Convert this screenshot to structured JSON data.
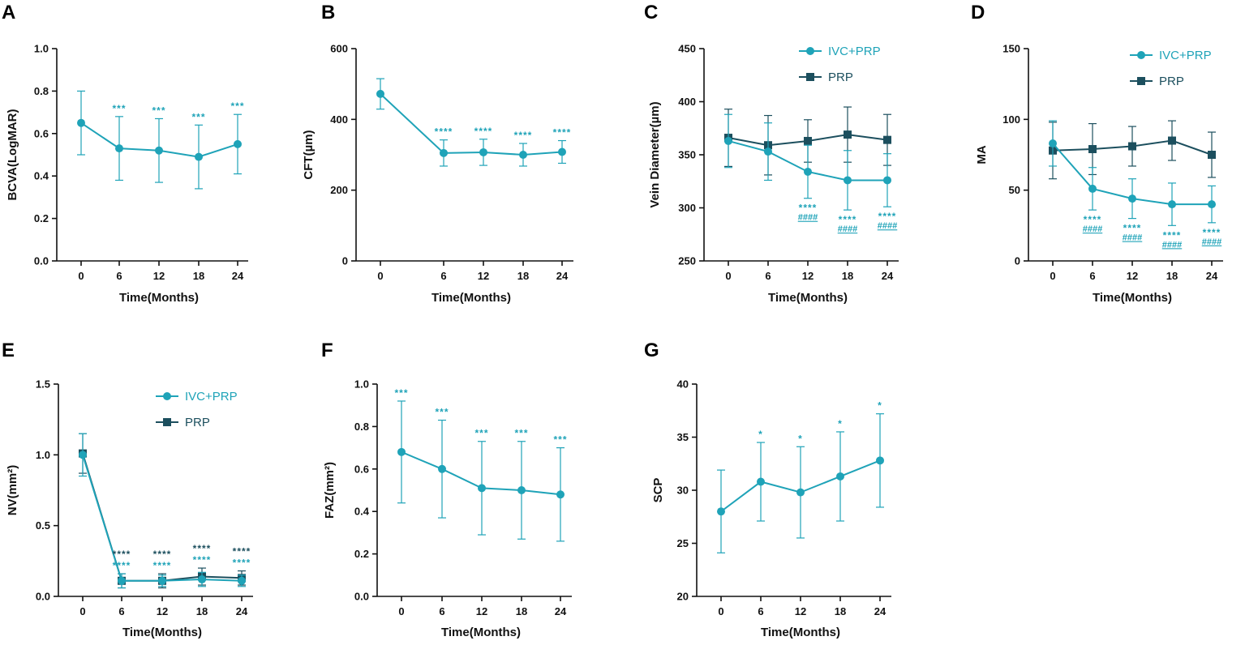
{
  "colors": {
    "ivc": "#1fa3b8",
    "prp": "#1c4f5e",
    "axis": "#111111"
  },
  "chart_data": [
    {
      "panel": "A",
      "type": "line",
      "ylabel": "BCVA(LogMAR)",
      "xlabel": "Time(Months)",
      "ylim": [
        0.0,
        1.0
      ],
      "yticks": [
        0.0,
        0.2,
        0.4,
        0.6,
        0.8,
        1.0
      ],
      "ytick_labels": [
        "0.0",
        "0.2",
        "0.4",
        "0.6",
        "0.8",
        "1.0"
      ],
      "categories": [
        "0",
        "6",
        "12",
        "18",
        "24"
      ],
      "series": [
        {
          "name": "IVC+PRP",
          "color": "ivc",
          "marker": "circle",
          "values": [
            0.65,
            0.53,
            0.52,
            0.49,
            0.55
          ],
          "err": [
            0.15,
            0.15,
            0.15,
            0.15,
            0.14
          ],
          "sig": [
            "",
            "***",
            "***",
            "***",
            "***"
          ]
        }
      ],
      "legend": null
    },
    {
      "panel": "B",
      "type": "line",
      "ylabel": "CFT(µm)",
      "xlabel": "Time(Months)",
      "ylim": [
        0,
        600
      ],
      "yticks": [
        0,
        200,
        400,
        600
      ],
      "ytick_labels": [
        "0",
        "200",
        "400",
        "600"
      ],
      "categories": [
        "0",
        "6",
        "12",
        "18",
        "24"
      ],
      "series": [
        {
          "name": "IVC+PRP",
          "color": "ivc",
          "marker": "circle",
          "values": [
            472,
            305,
            307,
            300,
            308
          ],
          "err": [
            43,
            37,
            37,
            32,
            32
          ],
          "sig": [
            "",
            "****",
            "****",
            "****",
            "****"
          ]
        }
      ],
      "legend": null
    },
    {
      "panel": "C",
      "type": "line",
      "ylabel": "Vein Diameter(µm)",
      "xlabel": "Time(Months)",
      "ylim": [
        250,
        450
      ],
      "yticks": [
        250,
        300,
        350,
        400,
        450
      ],
      "ytick_labels": [
        "250",
        "300",
        "350",
        "400",
        "450"
      ],
      "categories": [
        "0",
        "6",
        "12",
        "18",
        "24"
      ],
      "series": [
        {
          "name": "IVC+PRP",
          "color": "ivc",
          "marker": "circle",
          "values": [
            363,
            353,
            334,
            326,
            326
          ],
          "err": [
            25,
            27,
            25,
            28,
            25
          ],
          "sig": [
            "",
            "",
            "****",
            "****",
            "****"
          ],
          "hash": [
            "",
            "",
            "####",
            "####",
            "####"
          ]
        },
        {
          "name": "PRP",
          "color": "prp",
          "marker": "square",
          "values": [
            366,
            359,
            363,
            369,
            364
          ],
          "err": [
            27,
            28,
            20,
            26,
            24
          ],
          "sig": [
            "",
            "",
            "",
            "",
            ""
          ]
        }
      ],
      "legend": [
        "IVC+PRP",
        "PRP"
      ]
    },
    {
      "panel": "D",
      "type": "line",
      "ylabel": "MA",
      "xlabel": "Time(Months)",
      "ylim": [
        0,
        150
      ],
      "yticks": [
        0,
        50,
        100,
        150
      ],
      "ytick_labels": [
        "0",
        "50",
        "100",
        "150"
      ],
      "categories": [
        "0",
        "6",
        "12",
        "18",
        "24"
      ],
      "series": [
        {
          "name": "IVC+PRP",
          "color": "ivc",
          "marker": "circle",
          "values": [
            83,
            51,
            44,
            40,
            40
          ],
          "err": [
            16,
            15,
            14,
            15,
            13
          ],
          "sig": [
            "",
            "****",
            "****",
            "****",
            "****"
          ],
          "hash": [
            "",
            "####",
            "####",
            "####",
            "####"
          ]
        },
        {
          "name": "PRP",
          "color": "prp",
          "marker": "square",
          "values": [
            78,
            79,
            81,
            85,
            75
          ],
          "err": [
            20,
            18,
            14,
            14,
            16
          ],
          "sig": [
            "",
            "",
            "",
            "",
            ""
          ]
        }
      ],
      "legend": [
        "IVC+PRP",
        "PRP"
      ]
    },
    {
      "panel": "E",
      "type": "line",
      "ylabel": "NV(mm²)",
      "xlabel": "Time(Months)",
      "ylim": [
        0.0,
        1.5
      ],
      "yticks": [
        0.0,
        0.5,
        1.0,
        1.5
      ],
      "ytick_labels": [
        "0.0",
        "0.5",
        "1.0",
        "1.5"
      ],
      "categories": [
        "0",
        "6",
        "12",
        "18",
        "24"
      ],
      "series": [
        {
          "name": "IVC+PRP",
          "color": "ivc",
          "marker": "circle",
          "values": [
            1.0,
            0.11,
            0.11,
            0.12,
            0.11
          ],
          "err": [
            0.15,
            0.05,
            0.04,
            0.05,
            0.04
          ],
          "sig": [
            "",
            "****",
            "****",
            "****",
            "****"
          ]
        },
        {
          "name": "PRP",
          "color": "prp",
          "marker": "square",
          "values": [
            1.01,
            0.11,
            0.11,
            0.14,
            0.13
          ],
          "err": [
            0.14,
            0.05,
            0.05,
            0.06,
            0.05
          ],
          "sig": [
            "",
            "****",
            "****",
            "****",
            "****"
          ]
        }
      ],
      "legend": [
        "IVC+PRP",
        "PRP"
      ]
    },
    {
      "panel": "F",
      "type": "line",
      "ylabel": "FAZ(mm²)",
      "xlabel": "Time(Months)",
      "ylim": [
        0.0,
        1.0
      ],
      "yticks": [
        0.0,
        0.2,
        0.4,
        0.6,
        0.8,
        1.0
      ],
      "ytick_labels": [
        "0.0",
        "0.2",
        "0.4",
        "0.6",
        "0.8",
        "1.0"
      ],
      "categories": [
        "0",
        "6",
        "12",
        "18",
        "24"
      ],
      "series": [
        {
          "name": "IVC+PRP",
          "color": "ivc",
          "marker": "circle",
          "values": [
            0.68,
            0.6,
            0.51,
            0.5,
            0.48
          ],
          "err": [
            0.24,
            0.23,
            0.22,
            0.23,
            0.22
          ],
          "sig": [
            "***",
            "***",
            "***",
            "***",
            "***"
          ]
        }
      ],
      "legend": null
    },
    {
      "panel": "G",
      "type": "line",
      "ylabel": "SCP",
      "xlabel": "Time(Months)",
      "ylim": [
        20,
        40
      ],
      "yticks": [
        20,
        25,
        30,
        35,
        40
      ],
      "ytick_labels": [
        "20",
        "25",
        "30",
        "35",
        "40"
      ],
      "categories": [
        "0",
        "6",
        "12",
        "18",
        "24"
      ],
      "series": [
        {
          "name": "IVC+PRP",
          "color": "ivc",
          "marker": "circle",
          "values": [
            28.0,
            30.8,
            29.8,
            31.3,
            32.8
          ],
          "err": [
            3.9,
            3.7,
            4.3,
            4.2,
            4.4
          ],
          "sig": [
            "",
            "*",
            "*",
            "*",
            "*"
          ]
        }
      ],
      "legend": null
    }
  ]
}
